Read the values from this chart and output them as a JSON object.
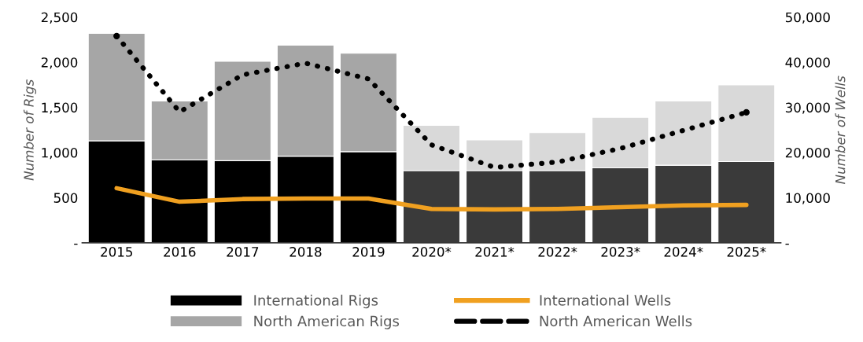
{
  "chart_data": {
    "type": "bar",
    "stacked": true,
    "categories": [
      "2015",
      "2016",
      "2017",
      "2018",
      "2019",
      "2020*",
      "2021*",
      "2022*",
      "2023*",
      "2024*",
      "2025*"
    ],
    "series": [
      {
        "name": "International Rigs",
        "colors": [
          "#000000",
          "#000000",
          "#000000",
          "#000000",
          "#000000",
          "#3a3a3a",
          "#3a3a3a",
          "#3a3a3a",
          "#3a3a3a",
          "#3a3a3a",
          "#3a3a3a"
        ],
        "values": [
          1130,
          920,
          910,
          960,
          1010,
          800,
          800,
          800,
          830,
          860,
          900
        ]
      },
      {
        "name": "North American Rigs",
        "colors": [
          "#a6a6a6",
          "#a6a6a6",
          "#a6a6a6",
          "#a6a6a6",
          "#a6a6a6",
          "#d9d9d9",
          "#d9d9d9",
          "#d9d9d9",
          "#d9d9d9",
          "#d9d9d9",
          "#d9d9d9"
        ],
        "values": [
          1190,
          650,
          1100,
          1230,
          1090,
          500,
          340,
          420,
          560,
          710,
          850
        ]
      },
      {
        "name": "International Wells",
        "type": "line",
        "axis": "y2",
        "color": "#f0a020",
        "line_style": "solid",
        "values": [
          12100,
          9100,
          9700,
          9800,
          9800,
          7500,
          7400,
          7500,
          7900,
          8300,
          8400
        ]
      },
      {
        "name": "North American Wells",
        "type": "line",
        "axis": "y2",
        "color": "#000000",
        "line_style": "dotted",
        "values": [
          45800,
          29000,
          37200,
          39800,
          36300,
          21700,
          16700,
          17900,
          20900,
          24900,
          28900
        ]
      }
    ],
    "ylabel": "Number of Rigs",
    "y2label": "Number of Wells",
    "ylim": [
      0,
      2500
    ],
    "yticks": [
      {
        "value": 0,
        "label": "-"
      },
      500,
      {
        "value": 1000,
        "label": "1,000"
      },
      {
        "value": 1500,
        "label": "1,500"
      },
      {
        "value": 2000,
        "label": "2,000"
      },
      {
        "value": 2500,
        "label": "2,500"
      }
    ],
    "y2lim": [
      0,
      50000
    ],
    "y2ticks": [
      {
        "value": 0,
        "label": "-"
      },
      {
        "value": 10000,
        "label": "10,000"
      },
      {
        "value": 20000,
        "label": "20,000"
      },
      {
        "value": 30000,
        "label": "30,000"
      },
      {
        "value": 40000,
        "label": "40,000"
      },
      {
        "value": 50000,
        "label": "50,000"
      }
    ],
    "legend": "bottom",
    "grid": false
  }
}
